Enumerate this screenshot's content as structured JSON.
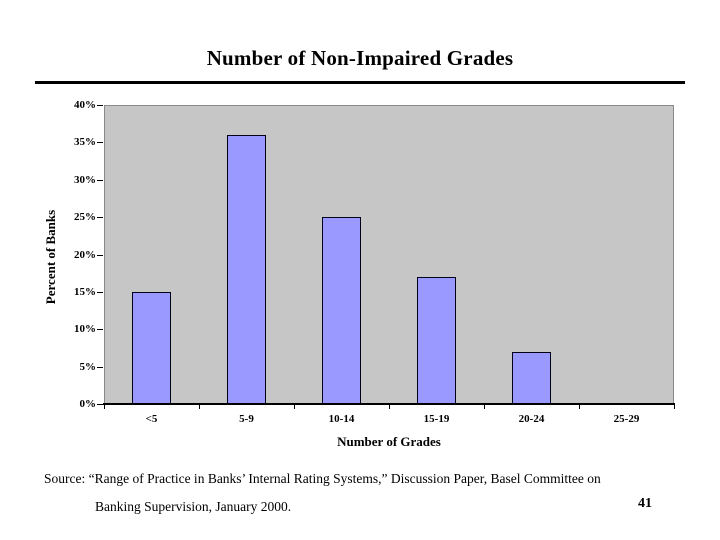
{
  "slide": {
    "title": "Number of Non-Impaired Grades"
  },
  "chart_data": {
    "type": "bar",
    "title": "Number of Non-Impaired Grades",
    "categories": [
      "<5",
      "5-9",
      "10-14",
      "15-19",
      "20-24",
      "25-29"
    ],
    "values": [
      15,
      36,
      25,
      17,
      7,
      0
    ],
    "xlabel": "Number of Grades",
    "ylabel": "Percent of Banks",
    "ylim": [
      0,
      40
    ],
    "ytick_step": 5,
    "ytick_labels": [
      "0%",
      "5%",
      "10%",
      "15%",
      "20%",
      "25%",
      "30%",
      "35%",
      "40%"
    ],
    "grid": false,
    "legend_position": "none",
    "bar_color": "#9999FF",
    "bar_border_color": "#000016",
    "plot_bg_color": "#C6C6C6",
    "plot_border_color": "#8A8A8A"
  },
  "footer": {
    "source_line1": "Source:  “Range of Practice in Banks’ Internal Rating Systems,” Discussion Paper, Basel Committee on",
    "source_line2": "Banking Supervision, January 2000.",
    "page_number": "41"
  }
}
